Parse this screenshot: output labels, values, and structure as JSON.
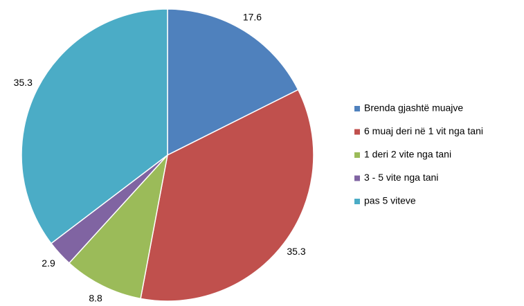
{
  "chart_data": {
    "type": "pie",
    "categories": [
      "Brenda gjashtë muajve",
      "6 muaj deri në 1 vit nga tani",
      "1 deri 2 vite nga tani",
      "3 - 5 vite nga tani",
      "pas 5 viteve"
    ],
    "values": [
      17.6,
      35.3,
      8.8,
      2.9,
      35.3
    ],
    "colors": [
      "#4f81bd",
      "#c0504d",
      "#9bbb59",
      "#8064a2",
      "#4bacc6"
    ],
    "legend": "right"
  }
}
